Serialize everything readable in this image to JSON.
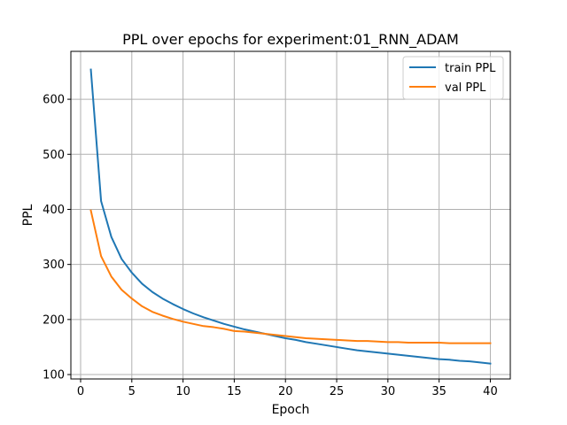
{
  "chart_data": {
    "type": "line",
    "title": "PPL over epochs for experiment:01_RNN_ADAM",
    "xlabel": "Epoch",
    "ylabel": "PPL",
    "xlim": [
      -0.95,
      41.95
    ],
    "ylim": [
      92,
      687
    ],
    "xticks": [
      0,
      5,
      10,
      15,
      20,
      25,
      30,
      35,
      40
    ],
    "yticks": [
      100,
      200,
      300,
      400,
      500,
      600
    ],
    "grid": true,
    "legend_position": "top-right",
    "x": [
      1,
      2,
      3,
      4,
      5,
      6,
      7,
      8,
      9,
      10,
      11,
      12,
      13,
      14,
      15,
      16,
      17,
      18,
      19,
      20,
      21,
      22,
      23,
      24,
      25,
      26,
      27,
      28,
      29,
      30,
      31,
      32,
      33,
      34,
      35,
      36,
      37,
      38,
      39,
      40
    ],
    "series": [
      {
        "name": "train PPL",
        "color": "#1f77b4",
        "values": [
          654,
          415,
          350,
          310,
          285,
          265,
          250,
          238,
          228,
          219,
          211,
          204,
          198,
          192,
          187,
          182,
          178,
          174,
          170,
          166,
          163,
          159,
          156,
          153,
          150,
          147,
          144,
          142,
          140,
          138,
          136,
          134,
          132,
          130,
          128,
          127,
          125,
          124,
          122,
          120
        ]
      },
      {
        "name": "val PPL",
        "color": "#ff7f0e",
        "values": [
          398,
          315,
          278,
          254,
          238,
          224,
          214,
          207,
          201,
          196,
          192,
          188,
          186,
          183,
          179,
          178,
          176,
          174,
          172,
          170,
          168,
          166,
          165,
          164,
          163,
          162,
          161,
          161,
          160,
          159,
          159,
          158,
          158,
          158,
          158,
          157,
          157,
          157,
          157,
          157
        ]
      }
    ]
  }
}
